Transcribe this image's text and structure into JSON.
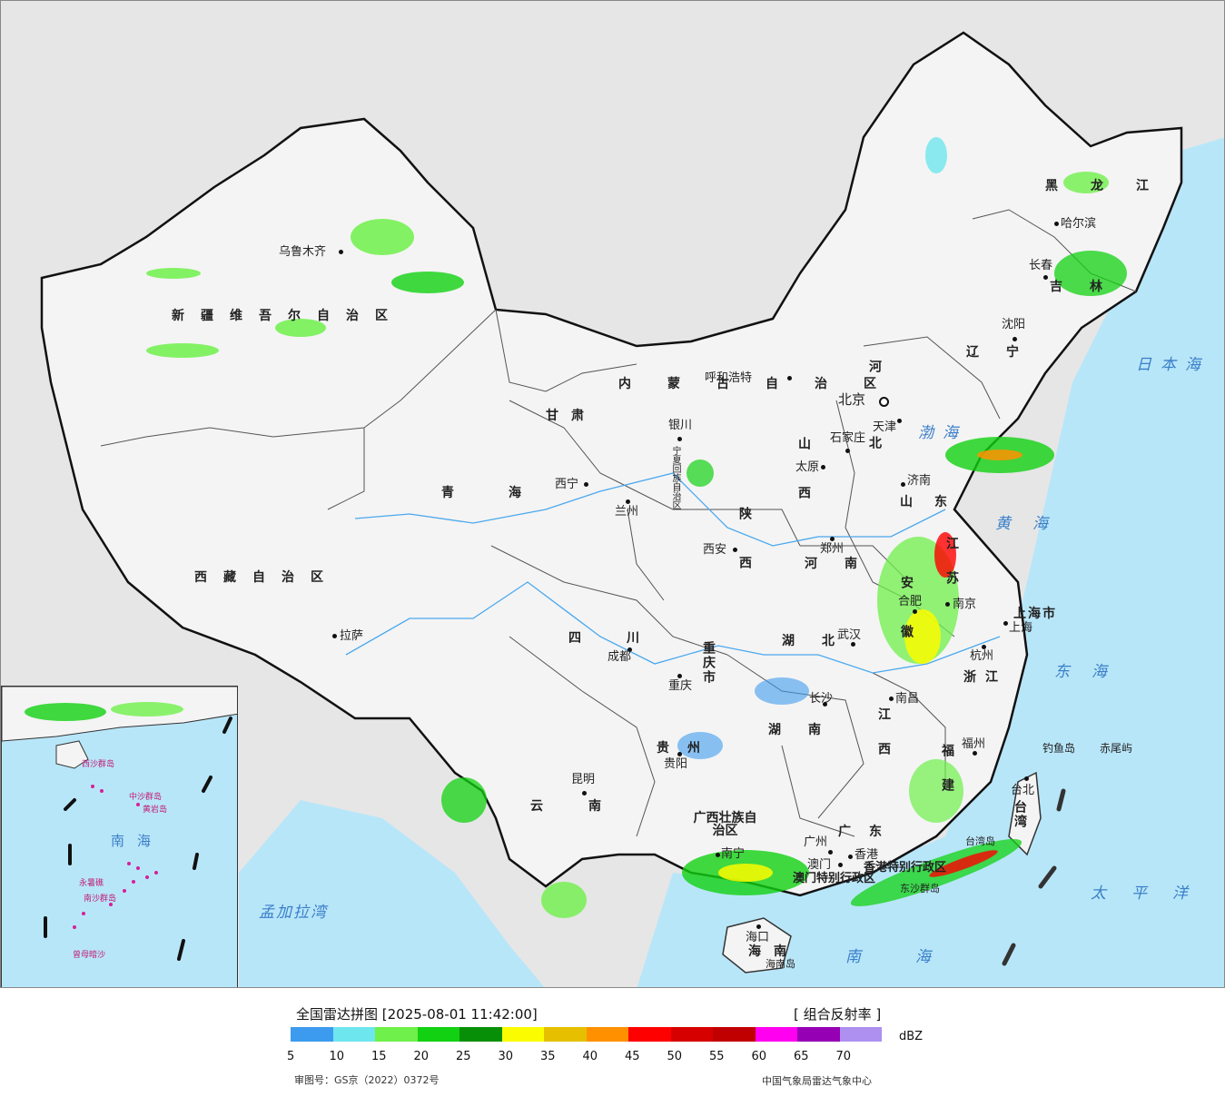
{
  "map": {
    "provinces": [
      {
        "name": "新疆维吾尔自治区"
      },
      {
        "name": "西藏自治区"
      },
      {
        "name": "青海"
      },
      {
        "name": "甘肃"
      },
      {
        "name": "内蒙古自治区"
      },
      {
        "name": "四川"
      },
      {
        "name": "云南"
      },
      {
        "name": "黑龙江"
      },
      {
        "name": "吉林"
      },
      {
        "name": "辽宁"
      },
      {
        "name": "河北"
      },
      {
        "name": "山西"
      },
      {
        "name": "陕西"
      },
      {
        "name": "河南"
      },
      {
        "name": "山东"
      },
      {
        "name": "江苏"
      },
      {
        "name": "安徽"
      },
      {
        "name": "湖北"
      },
      {
        "name": "湖南"
      },
      {
        "name": "江西"
      },
      {
        "name": "浙江"
      },
      {
        "name": "福建"
      },
      {
        "name": "贵州"
      },
      {
        "name": "重庆市"
      },
      {
        "name": "广西壮族自治区"
      },
      {
        "name": "广东"
      },
      {
        "name": "海南"
      },
      {
        "name": "台湾"
      },
      {
        "name": "上海市"
      },
      {
        "name": "宁夏回族自治区"
      },
      {
        "name": "香港特别行政区"
      },
      {
        "name": "澳门特别行政区"
      }
    ],
    "cities": [
      {
        "name": "乌鲁木齐"
      },
      {
        "name": "拉萨"
      },
      {
        "name": "西宁"
      },
      {
        "name": "兰州"
      },
      {
        "name": "银川"
      },
      {
        "name": "呼和浩特"
      },
      {
        "name": "北京"
      },
      {
        "name": "天津"
      },
      {
        "name": "石家庄"
      },
      {
        "name": "太原"
      },
      {
        "name": "济南"
      },
      {
        "name": "郑州"
      },
      {
        "name": "西安"
      },
      {
        "name": "成都"
      },
      {
        "name": "重庆"
      },
      {
        "name": "武汉"
      },
      {
        "name": "合肥"
      },
      {
        "name": "南京"
      },
      {
        "name": "上海"
      },
      {
        "name": "杭州"
      },
      {
        "name": "南昌"
      },
      {
        "name": "长沙"
      },
      {
        "name": "贵阳"
      },
      {
        "name": "昆明"
      },
      {
        "name": "南宁"
      },
      {
        "name": "广州"
      },
      {
        "name": "澳门"
      },
      {
        "name": "香港"
      },
      {
        "name": "海口"
      },
      {
        "name": "福州"
      },
      {
        "name": "台北"
      },
      {
        "name": "哈尔滨"
      },
      {
        "name": "长春"
      },
      {
        "name": "沈阳"
      }
    ],
    "seas": [
      {
        "name": "日本海"
      },
      {
        "name": "渤海"
      },
      {
        "name": "黄海"
      },
      {
        "name": "东海"
      },
      {
        "name": "太平洋"
      },
      {
        "name": "南海"
      },
      {
        "name": "孟加拉湾"
      }
    ],
    "islands": [
      {
        "name": "钓鱼岛"
      },
      {
        "name": "赤尾屿"
      },
      {
        "name": "台湾岛"
      },
      {
        "name": "海南岛"
      },
      {
        "name": "东沙群岛"
      }
    ]
  },
  "inset": {
    "labels": [
      "南海",
      "西沙群岛",
      "中沙群岛",
      "南沙群岛",
      "黄岩岛",
      "永暑礁",
      "曾母暗沙"
    ]
  },
  "legend": {
    "title": "全国雷达拼图 [2025-08-01 11:42:00]",
    "product": "[ 组合反射率 ]",
    "unit": "dBZ",
    "ticks": [
      "5",
      "10",
      "15",
      "20",
      "25",
      "30",
      "35",
      "40",
      "45",
      "50",
      "55",
      "60",
      "65",
      "70"
    ],
    "colors": [
      "#3d9bef",
      "#6ee6ee",
      "#6ff04a",
      "#12d112",
      "#088f08",
      "#fcfc00",
      "#e6c000",
      "#ff9000",
      "#ff0000",
      "#d60000",
      "#c00000",
      "#ff00f0",
      "#9600b4",
      "#ad90f0"
    ],
    "approval": "审图号：GS京（2022）0372号",
    "organization": "中国气象局雷达气象中心"
  }
}
